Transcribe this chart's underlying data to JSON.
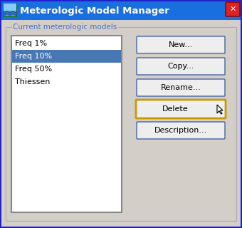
{
  "title_bar_text": "Meterologic Model Manager",
  "title_bar_bg": "#1a6fde",
  "title_bar_text_color": "#ffffff",
  "dialog_bg": "#d4cec8",
  "dialog_border_outer": "#2020cc",
  "group_label": "Current meterologic models",
  "group_label_color": "#4472c4",
  "list_items": [
    "Freq 1%",
    "Freq 10%",
    "Freq 50%",
    "Thiessen"
  ],
  "selected_item_index": 1,
  "selected_bg": "#4878b4",
  "selected_text_color": "#ffffff",
  "normal_text_color": "#000000",
  "list_bg": "#ffffff",
  "list_border": "#808080",
  "buttons": [
    "New...",
    "Copy...",
    "Rename...",
    "Delete",
    "Description..."
  ],
  "delete_button_index": 3,
  "delete_border_color": "#cc9900",
  "button_bg": "#eeeeee",
  "button_border": "#4466aa",
  "button_text_color": "#000000",
  "close_btn_color": "#dd2222",
  "figsize": [
    3.4,
    3.2
  ],
  "dpi": 100
}
